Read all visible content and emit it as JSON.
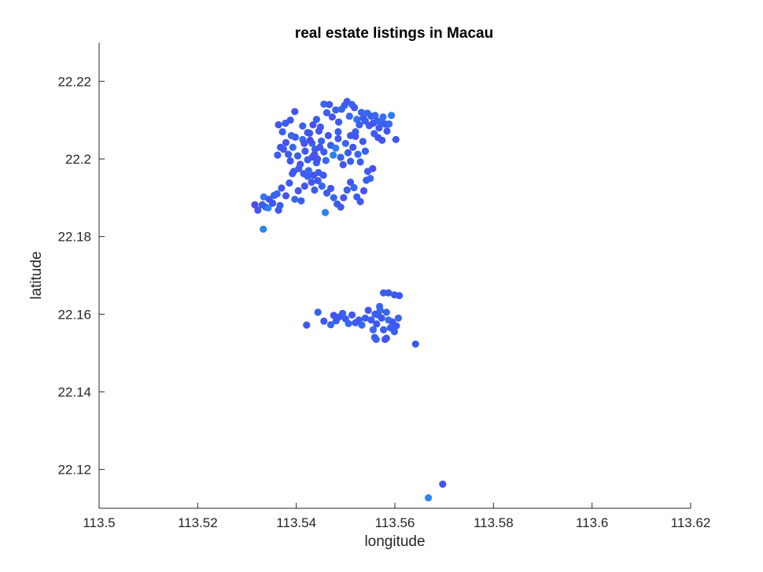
{
  "chart_data": {
    "type": "scatter",
    "title": "real estate listings in Macau",
    "xlabel": "longitude",
    "ylabel": "latitude",
    "xlim": [
      113.5,
      113.62
    ],
    "ylim": [
      22.11,
      22.23
    ],
    "xticks": [
      "113.5",
      "113.52",
      "113.54",
      "113.56",
      "113.58",
      "113.6",
      "113.62"
    ],
    "yticks": [
      "22.12",
      "22.14",
      "22.16",
      "22.18",
      "22.2",
      "22.22"
    ],
    "grid": false,
    "colors": {
      "low": "#5a3ff0",
      "mid": "#3a5ef0",
      "high": "#2a8cf0"
    },
    "points": [
      {
        "x": 113.5316,
        "y": 22.1882,
        "c": 0.2
      },
      {
        "x": 113.5322,
        "y": 22.1868,
        "c": 0.3
      },
      {
        "x": 113.5331,
        "y": 22.1882,
        "c": 0.4
      },
      {
        "x": 113.5334,
        "y": 22.1902,
        "c": 0.8
      },
      {
        "x": 113.5338,
        "y": 22.1876,
        "c": 0.5
      },
      {
        "x": 113.5343,
        "y": 22.1874,
        "c": 0.9
      },
      {
        "x": 113.5345,
        "y": 22.1896,
        "c": 0.3
      },
      {
        "x": 113.5352,
        "y": 22.1886,
        "c": 0.4
      },
      {
        "x": 113.5355,
        "y": 22.1906,
        "c": 0.5
      },
      {
        "x": 113.5361,
        "y": 22.191,
        "c": 0.6
      },
      {
        "x": 113.5364,
        "y": 22.1868,
        "c": 0.4
      },
      {
        "x": 113.5367,
        "y": 22.188,
        "c": 0.5
      },
      {
        "x": 113.537,
        "y": 22.1925,
        "c": 0.4
      },
      {
        "x": 113.5333,
        "y": 22.1819,
        "c": 0.9
      },
      {
        "x": 113.5379,
        "y": 22.1905,
        "c": 0.3
      },
      {
        "x": 113.5386,
        "y": 22.1938,
        "c": 0.4
      },
      {
        "x": 113.5392,
        "y": 22.1962,
        "c": 0.5
      },
      {
        "x": 113.5397,
        "y": 22.1896,
        "c": 0.6
      },
      {
        "x": 113.5404,
        "y": 22.1918,
        "c": 0.4
      },
      {
        "x": 113.541,
        "y": 22.1892,
        "c": 0.5
      },
      {
        "x": 113.5417,
        "y": 22.193,
        "c": 0.3
      },
      {
        "x": 113.5423,
        "y": 22.1955,
        "c": 0.6
      },
      {
        "x": 113.5431,
        "y": 22.194,
        "c": 0.4
      },
      {
        "x": 113.5437,
        "y": 22.192,
        "c": 0.5
      },
      {
        "x": 113.5444,
        "y": 22.1944,
        "c": 0.4
      },
      {
        "x": 113.5452,
        "y": 22.193,
        "c": 0.6
      },
      {
        "x": 113.5459,
        "y": 22.1862,
        "c": 0.9
      },
      {
        "x": 113.5462,
        "y": 22.1912,
        "c": 0.5
      },
      {
        "x": 113.547,
        "y": 22.1924,
        "c": 0.4
      },
      {
        "x": 113.5476,
        "y": 22.19,
        "c": 0.6
      },
      {
        "x": 113.5483,
        "y": 22.1884,
        "c": 0.5
      },
      {
        "x": 113.549,
        "y": 22.1876,
        "c": 0.4
      },
      {
        "x": 113.5496,
        "y": 22.19,
        "c": 0.3
      },
      {
        "x": 113.5503,
        "y": 22.192,
        "c": 0.5
      },
      {
        "x": 113.551,
        "y": 22.194,
        "c": 0.4
      },
      {
        "x": 113.5517,
        "y": 22.1926,
        "c": 0.6
      },
      {
        "x": 113.5523,
        "y": 22.1902,
        "c": 0.5
      },
      {
        "x": 113.553,
        "y": 22.189,
        "c": 0.4
      },
      {
        "x": 113.5537,
        "y": 22.1918,
        "c": 0.3
      },
      {
        "x": 113.5542,
        "y": 22.1945,
        "c": 0.5
      },
      {
        "x": 113.5374,
        "y": 22.2025,
        "c": 0.4
      },
      {
        "x": 113.5379,
        "y": 22.2042,
        "c": 0.3
      },
      {
        "x": 113.5384,
        "y": 22.2012,
        "c": 0.5
      },
      {
        "x": 113.5388,
        "y": 22.1995,
        "c": 0.4
      },
      {
        "x": 113.5393,
        "y": 22.203,
        "c": 0.6
      },
      {
        "x": 113.5398,
        "y": 22.2056,
        "c": 0.4
      },
      {
        "x": 113.5403,
        "y": 22.2008,
        "c": 0.5
      },
      {
        "x": 113.5408,
        "y": 22.1986,
        "c": 0.3
      },
      {
        "x": 113.5413,
        "y": 22.205,
        "c": 0.7
      },
      {
        "x": 113.5418,
        "y": 22.202,
        "c": 0.4
      },
      {
        "x": 113.5423,
        "y": 22.1998,
        "c": 0.5
      },
      {
        "x": 113.5427,
        "y": 22.2066,
        "c": 0.4
      },
      {
        "x": 113.5432,
        "y": 22.204,
        "c": 0.6
      },
      {
        "x": 113.5437,
        "y": 22.2012,
        "c": 0.3
      },
      {
        "x": 113.5441,
        "y": 22.199,
        "c": 0.5
      },
      {
        "x": 113.5446,
        "y": 22.2072,
        "c": 0.4
      },
      {
        "x": 113.5451,
        "y": 22.2046,
        "c": 0.5
      },
      {
        "x": 113.5456,
        "y": 22.2018,
        "c": 0.4
      },
      {
        "x": 113.546,
        "y": 22.1996,
        "c": 0.6
      },
      {
        "x": 113.5465,
        "y": 22.206,
        "c": 0.3
      },
      {
        "x": 113.547,
        "y": 22.2035,
        "c": 0.5
      },
      {
        "x": 113.5475,
        "y": 22.201,
        "c": 0.9
      },
      {
        "x": 113.548,
        "y": 22.2028,
        "c": 0.8
      },
      {
        "x": 113.5485,
        "y": 22.2052,
        "c": 0.4
      },
      {
        "x": 113.549,
        "y": 22.2004,
        "c": 0.5
      },
      {
        "x": 113.5495,
        "y": 22.1985,
        "c": 0.3
      },
      {
        "x": 113.55,
        "y": 22.204,
        "c": 0.6
      },
      {
        "x": 113.5505,
        "y": 22.2016,
        "c": 0.4
      },
      {
        "x": 113.551,
        "y": 22.1994,
        "c": 0.5
      },
      {
        "x": 113.5515,
        "y": 22.203,
        "c": 0.4
      },
      {
        "x": 113.552,
        "y": 22.2058,
        "c": 0.3
      },
      {
        "x": 113.5525,
        "y": 22.2012,
        "c": 0.6
      },
      {
        "x": 113.553,
        "y": 22.1992,
        "c": 0.5
      },
      {
        "x": 113.5535,
        "y": 22.2045,
        "c": 0.4
      },
      {
        "x": 113.554,
        "y": 22.202,
        "c": 0.5
      },
      {
        "x": 113.5545,
        "y": 22.1968,
        "c": 0.4
      },
      {
        "x": 113.555,
        "y": 22.195,
        "c": 0.6
      },
      {
        "x": 113.5555,
        "y": 22.1975,
        "c": 0.3
      },
      {
        "x": 113.5395,
        "y": 22.1968,
        "c": 0.4
      },
      {
        "x": 113.5405,
        "y": 22.1975,
        "c": 0.5
      },
      {
        "x": 113.5415,
        "y": 22.1962,
        "c": 0.4
      },
      {
        "x": 113.5425,
        "y": 22.197,
        "c": 0.6
      },
      {
        "x": 113.5435,
        "y": 22.1958,
        "c": 0.3
      },
      {
        "x": 113.5445,
        "y": 22.1965,
        "c": 0.5
      },
      {
        "x": 113.5455,
        "y": 22.1958,
        "c": 0.4
      },
      {
        "x": 113.5438,
        "y": 22.2025,
        "c": 0.4
      },
      {
        "x": 113.5443,
        "y": 22.2,
        "c": 0.3
      },
      {
        "x": 113.5448,
        "y": 22.203,
        "c": 0.4
      },
      {
        "x": 113.5428,
        "y": 22.2048,
        "c": 0.2
      },
      {
        "x": 113.5433,
        "y": 22.2005,
        "c": 0.3
      },
      {
        "x": 113.5416,
        "y": 22.204,
        "c": 0.3
      },
      {
        "x": 113.5378,
        "y": 22.2092,
        "c": 0.5
      },
      {
        "x": 113.5388,
        "y": 22.21,
        "c": 0.4
      },
      {
        "x": 113.5397,
        "y": 22.2122,
        "c": 0.3
      },
      {
        "x": 113.5413,
        "y": 22.2085,
        "c": 0.5
      },
      {
        "x": 113.5423,
        "y": 22.2068,
        "c": 0.4
      },
      {
        "x": 113.5434,
        "y": 22.2088,
        "c": 0.3
      },
      {
        "x": 113.5441,
        "y": 22.2102,
        "c": 0.5
      },
      {
        "x": 113.5449,
        "y": 22.2082,
        "c": 0.4
      },
      {
        "x": 113.5456,
        "y": 22.2141,
        "c": 0.6
      },
      {
        "x": 113.5462,
        "y": 22.2119,
        "c": 0.5
      },
      {
        "x": 113.5467,
        "y": 22.214,
        "c": 0.4
      },
      {
        "x": 113.5473,
        "y": 22.2108,
        "c": 0.3
      },
      {
        "x": 113.548,
        "y": 22.2126,
        "c": 0.5
      },
      {
        "x": 113.5486,
        "y": 22.2095,
        "c": 0.4
      },
      {
        "x": 113.5492,
        "y": 22.2128,
        "c": 0.6
      },
      {
        "x": 113.5498,
        "y": 22.2138,
        "c": 0.5
      },
      {
        "x": 113.5503,
        "y": 22.2148,
        "c": 0.4
      },
      {
        "x": 113.5508,
        "y": 22.211,
        "c": 0.6
      },
      {
        "x": 113.5513,
        "y": 22.214,
        "c": 0.5
      },
      {
        "x": 113.5518,
        "y": 22.2132,
        "c": 0.4
      },
      {
        "x": 113.5523,
        "y": 22.2102,
        "c": 0.7
      },
      {
        "x": 113.5528,
        "y": 22.2088,
        "c": 0.5
      },
      {
        "x": 113.5532,
        "y": 22.212,
        "c": 0.6
      },
      {
        "x": 113.5536,
        "y": 22.2105,
        "c": 0.4
      },
      {
        "x": 113.554,
        "y": 22.2098,
        "c": 0.5
      },
      {
        "x": 113.5544,
        "y": 22.2118,
        "c": 0.6
      },
      {
        "x": 113.5548,
        "y": 22.2086,
        "c": 0.4
      },
      {
        "x": 113.5552,
        "y": 22.211,
        "c": 0.5
      },
      {
        "x": 113.5556,
        "y": 22.2092,
        "c": 0.3
      },
      {
        "x": 113.556,
        "y": 22.2112,
        "c": 0.6
      },
      {
        "x": 113.5564,
        "y": 22.2098,
        "c": 0.5
      },
      {
        "x": 113.5568,
        "y": 22.208,
        "c": 0.4
      },
      {
        "x": 113.5572,
        "y": 22.2094,
        "c": 0.6
      },
      {
        "x": 113.5576,
        "y": 22.2108,
        "c": 0.7
      },
      {
        "x": 113.558,
        "y": 22.209,
        "c": 0.5
      },
      {
        "x": 113.5584,
        "y": 22.2072,
        "c": 0.4
      },
      {
        "x": 113.5588,
        "y": 22.209,
        "c": 0.6
      },
      {
        "x": 113.5593,
        "y": 22.2112,
        "c": 0.8
      },
      {
        "x": 113.5602,
        "y": 22.205,
        "c": 0.4
      },
      {
        "x": 113.5558,
        "y": 22.2065,
        "c": 0.5
      },
      {
        "x": 113.5566,
        "y": 22.2055,
        "c": 0.4
      },
      {
        "x": 113.5574,
        "y": 22.2048,
        "c": 0.3
      },
      {
        "x": 113.552,
        "y": 22.207,
        "c": 0.5
      },
      {
        "x": 113.551,
        "y": 22.206,
        "c": 0.4
      },
      {
        "x": 113.5485,
        "y": 22.207,
        "c": 0.5
      },
      {
        "x": 113.5364,
        "y": 22.2088,
        "c": 0.4
      },
      {
        "x": 113.5372,
        "y": 22.207,
        "c": 0.5
      },
      {
        "x": 113.539,
        "y": 22.206,
        "c": 0.6
      },
      {
        "x": 113.5368,
        "y": 22.203,
        "c": 0.4
      },
      {
        "x": 113.5362,
        "y": 22.201,
        "c": 0.5
      },
      {
        "x": 113.5421,
        "y": 22.1572,
        "c": 0.4
      },
      {
        "x": 113.5444,
        "y": 22.1605,
        "c": 0.5
      },
      {
        "x": 113.5456,
        "y": 22.1582,
        "c": 0.4
      },
      {
        "x": 113.547,
        "y": 22.1573,
        "c": 0.6
      },
      {
        "x": 113.5476,
        "y": 22.1597,
        "c": 0.3
      },
      {
        "x": 113.5481,
        "y": 22.1583,
        "c": 0.5
      },
      {
        "x": 113.5487,
        "y": 22.1593,
        "c": 0.4
      },
      {
        "x": 113.5494,
        "y": 22.1602,
        "c": 0.5
      },
      {
        "x": 113.55,
        "y": 22.1588,
        "c": 0.4
      },
      {
        "x": 113.5506,
        "y": 22.1576,
        "c": 0.6
      },
      {
        "x": 113.5513,
        "y": 22.1598,
        "c": 0.4
      },
      {
        "x": 113.552,
        "y": 22.1578,
        "c": 0.5
      },
      {
        "x": 113.5527,
        "y": 22.1585,
        "c": 0.4
      },
      {
        "x": 113.5533,
        "y": 22.1572,
        "c": 0.6
      },
      {
        "x": 113.554,
        "y": 22.159,
        "c": 0.5
      },
      {
        "x": 113.5546,
        "y": 22.161,
        "c": 0.4
      },
      {
        "x": 113.5552,
        "y": 22.1585,
        "c": 0.5
      },
      {
        "x": 113.5556,
        "y": 22.156,
        "c": 0.6
      },
      {
        "x": 113.5559,
        "y": 22.154,
        "c": 0.5
      },
      {
        "x": 113.5563,
        "y": 22.1575,
        "c": 0.4
      },
      {
        "x": 113.5566,
        "y": 22.1598,
        "c": 0.5
      },
      {
        "x": 113.5569,
        "y": 22.162,
        "c": 0.6
      },
      {
        "x": 113.5573,
        "y": 22.159,
        "c": 0.4
      },
      {
        "x": 113.5577,
        "y": 22.156,
        "c": 0.5
      },
      {
        "x": 113.558,
        "y": 22.1535,
        "c": 0.4
      },
      {
        "x": 113.5583,
        "y": 22.1605,
        "c": 0.6
      },
      {
        "x": 113.5587,
        "y": 22.1585,
        "c": 0.7
      },
      {
        "x": 113.5591,
        "y": 22.1565,
        "c": 0.5
      },
      {
        "x": 113.5595,
        "y": 22.158,
        "c": 0.4
      },
      {
        "x": 113.5599,
        "y": 22.1555,
        "c": 0.5
      },
      {
        "x": 113.5603,
        "y": 22.157,
        "c": 0.4
      },
      {
        "x": 113.5607,
        "y": 22.159,
        "c": 0.6
      },
      {
        "x": 113.5577,
        "y": 22.1655,
        "c": 0.5
      },
      {
        "x": 113.5587,
        "y": 22.1655,
        "c": 0.4
      },
      {
        "x": 113.5599,
        "y": 22.165,
        "c": 0.5
      },
      {
        "x": 113.5609,
        "y": 22.1648,
        "c": 0.4
      },
      {
        "x": 113.5562,
        "y": 22.1535,
        "c": 0.5
      },
      {
        "x": 113.5583,
        "y": 22.1538,
        "c": 0.4
      },
      {
        "x": 113.5642,
        "y": 22.1523,
        "c": 0.4
      },
      {
        "x": 113.557,
        "y": 22.161,
        "c": 0.6
      },
      {
        "x": 113.556,
        "y": 22.16,
        "c": 0.5
      },
      {
        "x": 113.5697,
        "y": 22.1162,
        "c": 0.3
      },
      {
        "x": 113.5668,
        "y": 22.1127,
        "c": 0.9
      }
    ]
  }
}
